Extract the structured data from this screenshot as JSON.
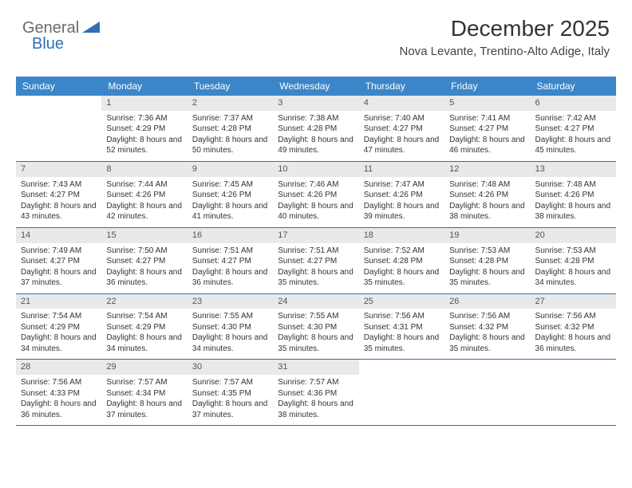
{
  "logo": {
    "text1": "General",
    "text2": "Blue"
  },
  "header": {
    "month_title": "December 2025",
    "location": "Nova Levante, Trentino-Alto Adige, Italy"
  },
  "colors": {
    "header_bar": "#3b86c8",
    "row_divider": "#2f6fb3",
    "daynum_bg": "#e9e9e9",
    "logo_gray": "#6b6b6b",
    "logo_blue": "#2f6fb3"
  },
  "layout": {
    "columns": 7,
    "rows": 5,
    "first_day_column_index": 1
  },
  "days_of_week": [
    "Sunday",
    "Monday",
    "Tuesday",
    "Wednesday",
    "Thursday",
    "Friday",
    "Saturday"
  ],
  "days": [
    {
      "n": 1,
      "sunrise": "7:36 AM",
      "sunset": "4:29 PM",
      "daylight": "8 hours and 52 minutes."
    },
    {
      "n": 2,
      "sunrise": "7:37 AM",
      "sunset": "4:28 PM",
      "daylight": "8 hours and 50 minutes."
    },
    {
      "n": 3,
      "sunrise": "7:38 AM",
      "sunset": "4:28 PM",
      "daylight": "8 hours and 49 minutes."
    },
    {
      "n": 4,
      "sunrise": "7:40 AM",
      "sunset": "4:27 PM",
      "daylight": "8 hours and 47 minutes."
    },
    {
      "n": 5,
      "sunrise": "7:41 AM",
      "sunset": "4:27 PM",
      "daylight": "8 hours and 46 minutes."
    },
    {
      "n": 6,
      "sunrise": "7:42 AM",
      "sunset": "4:27 PM",
      "daylight": "8 hours and 45 minutes."
    },
    {
      "n": 7,
      "sunrise": "7:43 AM",
      "sunset": "4:27 PM",
      "daylight": "8 hours and 43 minutes."
    },
    {
      "n": 8,
      "sunrise": "7:44 AM",
      "sunset": "4:26 PM",
      "daylight": "8 hours and 42 minutes."
    },
    {
      "n": 9,
      "sunrise": "7:45 AM",
      "sunset": "4:26 PM",
      "daylight": "8 hours and 41 minutes."
    },
    {
      "n": 10,
      "sunrise": "7:46 AM",
      "sunset": "4:26 PM",
      "daylight": "8 hours and 40 minutes."
    },
    {
      "n": 11,
      "sunrise": "7:47 AM",
      "sunset": "4:26 PM",
      "daylight": "8 hours and 39 minutes."
    },
    {
      "n": 12,
      "sunrise": "7:48 AM",
      "sunset": "4:26 PM",
      "daylight": "8 hours and 38 minutes."
    },
    {
      "n": 13,
      "sunrise": "7:48 AM",
      "sunset": "4:26 PM",
      "daylight": "8 hours and 38 minutes."
    },
    {
      "n": 14,
      "sunrise": "7:49 AM",
      "sunset": "4:27 PM",
      "daylight": "8 hours and 37 minutes."
    },
    {
      "n": 15,
      "sunrise": "7:50 AM",
      "sunset": "4:27 PM",
      "daylight": "8 hours and 36 minutes."
    },
    {
      "n": 16,
      "sunrise": "7:51 AM",
      "sunset": "4:27 PM",
      "daylight": "8 hours and 36 minutes."
    },
    {
      "n": 17,
      "sunrise": "7:51 AM",
      "sunset": "4:27 PM",
      "daylight": "8 hours and 35 minutes."
    },
    {
      "n": 18,
      "sunrise": "7:52 AM",
      "sunset": "4:28 PM",
      "daylight": "8 hours and 35 minutes."
    },
    {
      "n": 19,
      "sunrise": "7:53 AM",
      "sunset": "4:28 PM",
      "daylight": "8 hours and 35 minutes."
    },
    {
      "n": 20,
      "sunrise": "7:53 AM",
      "sunset": "4:28 PM",
      "daylight": "8 hours and 34 minutes."
    },
    {
      "n": 21,
      "sunrise": "7:54 AM",
      "sunset": "4:29 PM",
      "daylight": "8 hours and 34 minutes."
    },
    {
      "n": 22,
      "sunrise": "7:54 AM",
      "sunset": "4:29 PM",
      "daylight": "8 hours and 34 minutes."
    },
    {
      "n": 23,
      "sunrise": "7:55 AM",
      "sunset": "4:30 PM",
      "daylight": "8 hours and 34 minutes."
    },
    {
      "n": 24,
      "sunrise": "7:55 AM",
      "sunset": "4:30 PM",
      "daylight": "8 hours and 35 minutes."
    },
    {
      "n": 25,
      "sunrise": "7:56 AM",
      "sunset": "4:31 PM",
      "daylight": "8 hours and 35 minutes."
    },
    {
      "n": 26,
      "sunrise": "7:56 AM",
      "sunset": "4:32 PM",
      "daylight": "8 hours and 35 minutes."
    },
    {
      "n": 27,
      "sunrise": "7:56 AM",
      "sunset": "4:32 PM",
      "daylight": "8 hours and 36 minutes."
    },
    {
      "n": 28,
      "sunrise": "7:56 AM",
      "sunset": "4:33 PM",
      "daylight": "8 hours and 36 minutes."
    },
    {
      "n": 29,
      "sunrise": "7:57 AM",
      "sunset": "4:34 PM",
      "daylight": "8 hours and 37 minutes."
    },
    {
      "n": 30,
      "sunrise": "7:57 AM",
      "sunset": "4:35 PM",
      "daylight": "8 hours and 37 minutes."
    },
    {
      "n": 31,
      "sunrise": "7:57 AM",
      "sunset": "4:36 PM",
      "daylight": "8 hours and 38 minutes."
    }
  ],
  "labels": {
    "sunrise": "Sunrise:",
    "sunset": "Sunset:",
    "daylight": "Daylight:"
  }
}
